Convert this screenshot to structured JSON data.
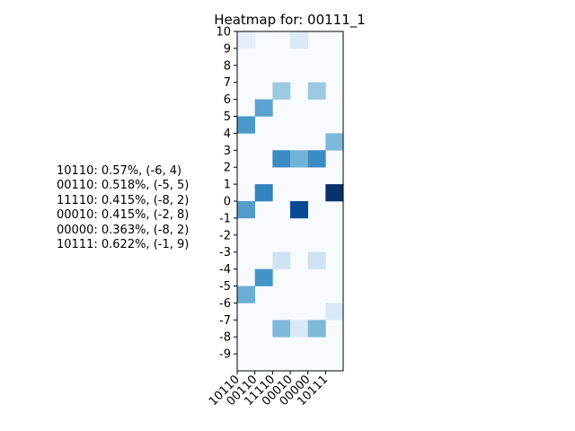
{
  "chart_data": {
    "type": "heatmap",
    "title": "Heatmap for: 00111_1",
    "xlabel": "",
    "ylabel": "",
    "x_categories": [
      "10110",
      "00110",
      "11110",
      "00010",
      "00000",
      "10111"
    ],
    "y_ticks": [
      "10",
      "9",
      "8",
      "7",
      "6",
      "5",
      "4",
      "3",
      "2",
      "1",
      "0",
      "-1",
      "-2",
      "-3",
      "-4",
      "-5",
      "-6",
      "-7",
      "-8",
      "-9"
    ],
    "colormap": "Blues",
    "colormap_stops": [
      "#f7fbff",
      "#deebf7",
      "#c6dbef",
      "#9ecae1",
      "#6baed6",
      "#4292c6",
      "#2171b5",
      "#08519c",
      "#08306b"
    ],
    "value_range": [
      0,
      1
    ],
    "grid": false,
    "annotations": [
      "10110: 0.57%, (-6, 4)",
      "00110: 0.518%, (-5, 5)",
      "11110: 0.415%, (-8, 2)",
      "00010: 0.415%, (-2, 8)",
      "00000: 0.363%, (-8, 2)",
      "10111: 0.622%, (-1, 9)"
    ],
    "cells": [
      {
        "x": "10110",
        "y": "10",
        "v": 0.1
      },
      {
        "x": "00010",
        "y": "10",
        "v": 0.14
      },
      {
        "x": "11110",
        "y": "7",
        "v": 0.38
      },
      {
        "x": "00000",
        "y": "7",
        "v": 0.38
      },
      {
        "x": "00110",
        "y": "6",
        "v": 0.55
      },
      {
        "x": "10110",
        "y": "5",
        "v": 0.6
      },
      {
        "x": "10111",
        "y": "4",
        "v": 0.45
      },
      {
        "x": "11110",
        "y": "3",
        "v": 0.65
      },
      {
        "x": "00010",
        "y": "3",
        "v": 0.48
      },
      {
        "x": "00000",
        "y": "3",
        "v": 0.65
      },
      {
        "x": "00110",
        "y": "1",
        "v": 0.68
      },
      {
        "x": "10111",
        "y": "1",
        "v": 1.0
      },
      {
        "x": "10110",
        "y": "0",
        "v": 0.58
      },
      {
        "x": "00010",
        "y": "0",
        "v": 0.9
      },
      {
        "x": "11110",
        "y": "-3",
        "v": 0.2
      },
      {
        "x": "00000",
        "y": "-3",
        "v": 0.2
      },
      {
        "x": "00110",
        "y": "-4",
        "v": 0.62
      },
      {
        "x": "10110",
        "y": "-5",
        "v": 0.5
      },
      {
        "x": "10111",
        "y": "-6",
        "v": 0.15
      },
      {
        "x": "11110",
        "y": "-7",
        "v": 0.45
      },
      {
        "x": "00010",
        "y": "-7",
        "v": 0.15
      },
      {
        "x": "00000",
        "y": "-7",
        "v": 0.45
      }
    ]
  }
}
